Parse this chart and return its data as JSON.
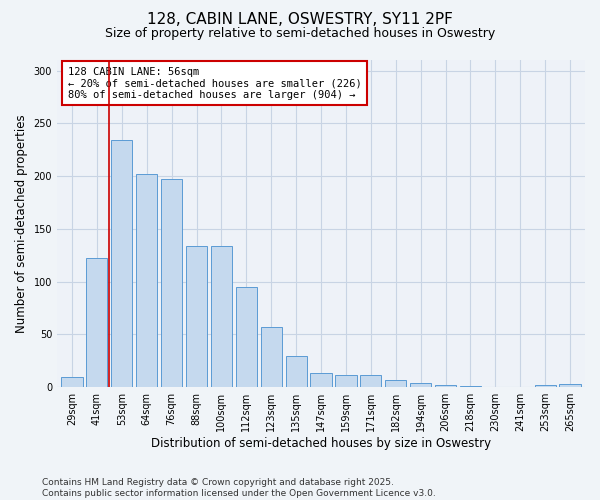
{
  "title1": "128, CABIN LANE, OSWESTRY, SY11 2PF",
  "title2": "Size of property relative to semi-detached houses in Oswestry",
  "xlabel": "Distribution of semi-detached houses by size in Oswestry",
  "ylabel": "Number of semi-detached properties",
  "categories": [
    "29sqm",
    "41sqm",
    "53sqm",
    "64sqm",
    "76sqm",
    "88sqm",
    "100sqm",
    "112sqm",
    "123sqm",
    "135sqm",
    "147sqm",
    "159sqm",
    "171sqm",
    "182sqm",
    "194sqm",
    "206sqm",
    "218sqm",
    "230sqm",
    "241sqm",
    "253sqm",
    "265sqm"
  ],
  "values": [
    10,
    122,
    234,
    202,
    197,
    134,
    134,
    95,
    57,
    30,
    13,
    12,
    12,
    7,
    4,
    2,
    1,
    0,
    0,
    2,
    3
  ],
  "bar_color": "#c5d9ee",
  "bar_edge_color": "#5b9bd5",
  "vline_x": 1.5,
  "annotation_text": "128 CABIN LANE: 56sqm\n← 20% of semi-detached houses are smaller (226)\n80% of semi-detached houses are larger (904) →",
  "annotation_box_color": "#ffffff",
  "annotation_box_edge_color": "#cc0000",
  "vline_color": "#cc0000",
  "ylim": [
    0,
    310
  ],
  "yticks": [
    0,
    50,
    100,
    150,
    200,
    250,
    300
  ],
  "footer1": "Contains HM Land Registry data © Crown copyright and database right 2025.",
  "footer2": "Contains public sector information licensed under the Open Government Licence v3.0.",
  "bg_color": "#f0f4f8",
  "plot_bg_color": "#eef2f8",
  "grid_color": "#c8d4e4",
  "title1_fontsize": 11,
  "title2_fontsize": 9,
  "tick_fontsize": 7,
  "label_fontsize": 8.5,
  "footer_fontsize": 6.5,
  "annotation_fontsize": 7.5
}
